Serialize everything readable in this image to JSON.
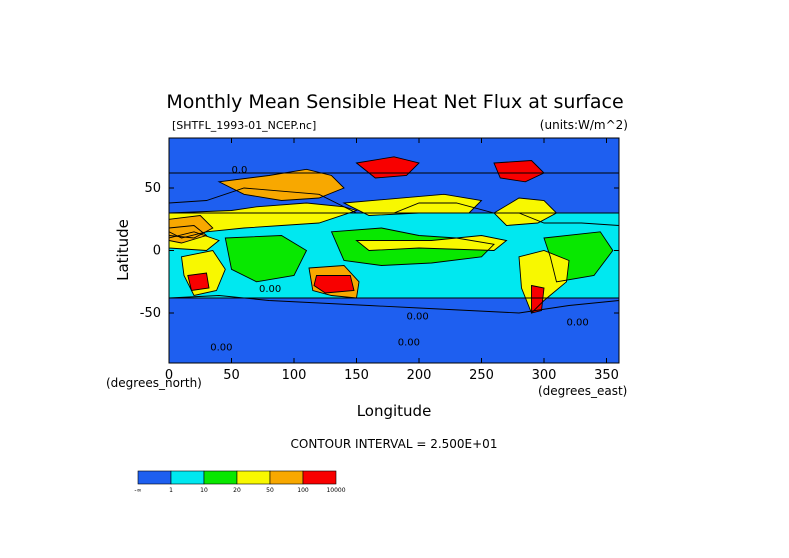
{
  "chart_data": {
    "type": "heatmap",
    "title": "Monthly Mean Sensible Heat Net Flux at surface",
    "source_label": "[SHTFL_1993-01_NCEP.nc]",
    "units_label": "(units:W/m^2)",
    "xlabel": "Longitude",
    "ylabel": "Latitude",
    "x_unit_label": "(degrees_north)",
    "y_unit_label": "(degrees_east)",
    "xlim": [
      0,
      360
    ],
    "ylim": [
      -90,
      90
    ],
    "x_ticks": [
      0,
      50,
      100,
      150,
      200,
      250,
      300,
      350
    ],
    "y_ticks": [
      -50,
      0,
      50
    ],
    "contour_interval_text": "CONTOUR INTERVAL = 2.500E+01",
    "contour_labels": [
      {
        "text": "0.00",
        "lon": 72,
        "lat": -33
      },
      {
        "text": "0.00",
        "lon": 190,
        "lat": -55
      },
      {
        "text": "0.00",
        "lon": 183,
        "lat": -76
      },
      {
        "text": "0.00",
        "lon": 318,
        "lat": -60
      },
      {
        "text": "0.00",
        "lon": 33,
        "lat": -80
      },
      {
        "text": "0.0",
        "lon": 50,
        "lat": 62
      }
    ],
    "colorbar": {
      "labels": [
        "-∞",
        "1",
        "10",
        "20",
        "50",
        "100",
        "10000"
      ],
      "colors": [
        "#1e5ff0",
        "#00e8f0",
        "#08e800",
        "#f8f800",
        "#f8a800",
        "#f80000"
      ]
    },
    "regions": [
      {
        "name": "north-polar-band",
        "level": 0,
        "points": [
          [
            0,
            90
          ],
          [
            360,
            90
          ],
          [
            360,
            62
          ],
          [
            0,
            62
          ]
        ]
      },
      {
        "name": "northern-ocean-neg",
        "level": 0,
        "points": [
          [
            0,
            62
          ],
          [
            360,
            62
          ],
          [
            360,
            30
          ],
          [
            260,
            30
          ],
          [
            230,
            38
          ],
          [
            200,
            38
          ],
          [
            180,
            30
          ],
          [
            150,
            30
          ],
          [
            120,
            45
          ],
          [
            60,
            50
          ],
          [
            30,
            40
          ],
          [
            0,
            38
          ]
        ]
      },
      {
        "name": "north-atlantic-neg",
        "level": 0,
        "points": [
          [
            280,
            30
          ],
          [
            360,
            30
          ],
          [
            360,
            20
          ],
          [
            330,
            22
          ],
          [
            300,
            22
          ]
        ]
      },
      {
        "name": "southern-ocean-neg",
        "level": 0,
        "points": [
          [
            0,
            -38
          ],
          [
            40,
            -36
          ],
          [
            80,
            -40
          ],
          [
            120,
            -42
          ],
          [
            160,
            -44
          ],
          [
            200,
            -46
          ],
          [
            240,
            -48
          ],
          [
            280,
            -50
          ],
          [
            320,
            -44
          ],
          [
            360,
            -40
          ],
          [
            360,
            -90
          ],
          [
            0,
            -90
          ]
        ]
      },
      {
        "name": "tropic-ocean-cyan",
        "level": 1,
        "points": [
          [
            0,
            30
          ],
          [
            360,
            30
          ],
          [
            360,
            -38
          ],
          [
            0,
            -38
          ]
        ]
      },
      {
        "name": "west-pacific-green",
        "level": 2,
        "points": [
          [
            130,
            15
          ],
          [
            170,
            18
          ],
          [
            200,
            12
          ],
          [
            230,
            10
          ],
          [
            260,
            5
          ],
          [
            250,
            -5
          ],
          [
            210,
            -10
          ],
          [
            170,
            -12
          ],
          [
            140,
            -8
          ]
        ]
      },
      {
        "name": "indian-green",
        "level": 2,
        "points": [
          [
            45,
            10
          ],
          [
            90,
            12
          ],
          [
            110,
            0
          ],
          [
            100,
            -20
          ],
          [
            70,
            -25
          ],
          [
            50,
            -15
          ]
        ]
      },
      {
        "name": "atlantic-green",
        "level": 2,
        "points": [
          [
            300,
            10
          ],
          [
            345,
            15
          ],
          [
            355,
            0
          ],
          [
            340,
            -20
          ],
          [
            310,
            -25
          ],
          [
            305,
            -5
          ]
        ]
      },
      {
        "name": "north-africa-yellow",
        "level": 3,
        "points": [
          [
            0,
            30
          ],
          [
            50,
            32
          ],
          [
            70,
            35
          ],
          [
            110,
            38
          ],
          [
            140,
            35
          ],
          [
            150,
            32
          ],
          [
            120,
            22
          ],
          [
            90,
            20
          ],
          [
            60,
            18
          ],
          [
            30,
            15
          ],
          [
            10,
            10
          ],
          [
            0,
            15
          ]
        ]
      },
      {
        "name": "asia-orange",
        "level": 4,
        "points": [
          [
            40,
            55
          ],
          [
            80,
            60
          ],
          [
            110,
            65
          ],
          [
            130,
            60
          ],
          [
            140,
            50
          ],
          [
            120,
            42
          ],
          [
            90,
            40
          ],
          [
            60,
            45
          ]
        ]
      },
      {
        "name": "sahara-orange",
        "level": 4,
        "points": [
          [
            0,
            25
          ],
          [
            25,
            28
          ],
          [
            35,
            18
          ],
          [
            20,
            10
          ],
          [
            0,
            12
          ]
        ]
      },
      {
        "name": "north-pacific-yellow",
        "level": 3,
        "points": [
          [
            140,
            38
          ],
          [
            220,
            45
          ],
          [
            250,
            40
          ],
          [
            240,
            30
          ],
          [
            200,
            30
          ],
          [
            160,
            28
          ]
        ]
      },
      {
        "name": "us-yellow",
        "level": 3,
        "points": [
          [
            260,
            30
          ],
          [
            280,
            42
          ],
          [
            300,
            40
          ],
          [
            310,
            30
          ],
          [
            295,
            22
          ],
          [
            270,
            20
          ]
        ]
      },
      {
        "name": "siberia-red",
        "level": 5,
        "points": [
          [
            150,
            70
          ],
          [
            180,
            75
          ],
          [
            200,
            70
          ],
          [
            190,
            60
          ],
          [
            165,
            58
          ]
        ]
      },
      {
        "name": "canada-red",
        "level": 5,
        "points": [
          [
            260,
            70
          ],
          [
            290,
            72
          ],
          [
            300,
            62
          ],
          [
            285,
            55
          ],
          [
            265,
            58
          ]
        ]
      },
      {
        "name": "africa-south-yellow",
        "level": 3,
        "points": [
          [
            10,
            -5
          ],
          [
            35,
            0
          ],
          [
            45,
            -15
          ],
          [
            38,
            -32
          ],
          [
            20,
            -36
          ],
          [
            12,
            -20
          ]
        ]
      },
      {
        "name": "africa-south-red",
        "level": 5,
        "points": [
          [
            15,
            -20
          ],
          [
            30,
            -18
          ],
          [
            32,
            -30
          ],
          [
            18,
            -32
          ]
        ]
      },
      {
        "name": "australia-orange",
        "level": 4,
        "points": [
          [
            112,
            -14
          ],
          [
            140,
            -12
          ],
          [
            152,
            -25
          ],
          [
            150,
            -38
          ],
          [
            130,
            -36
          ],
          [
            115,
            -32
          ]
        ]
      },
      {
        "name": "australia-red",
        "level": 5,
        "points": [
          [
            118,
            -20
          ],
          [
            145,
            -20
          ],
          [
            148,
            -32
          ],
          [
            125,
            -34
          ],
          [
            116,
            -28
          ]
        ]
      },
      {
        "name": "south-america-yellow",
        "level": 3,
        "points": [
          [
            280,
            -5
          ],
          [
            300,
            0
          ],
          [
            320,
            -8
          ],
          [
            318,
            -25
          ],
          [
            300,
            -40
          ],
          [
            290,
            -50
          ],
          [
            282,
            -30
          ]
        ]
      },
      {
        "name": "south-america-red",
        "level": 5,
        "points": [
          [
            290,
            -28
          ],
          [
            300,
            -30
          ],
          [
            298,
            -48
          ],
          [
            290,
            -50
          ]
        ]
      },
      {
        "name": "equator-belt-yellow",
        "level": 3,
        "points": [
          [
            0,
            10
          ],
          [
            20,
            15
          ],
          [
            40,
            8
          ],
          [
            30,
            0
          ],
          [
            0,
            2
          ]
        ]
      },
      {
        "name": "tropic-yellow-band",
        "level": 3,
        "points": [
          [
            150,
            8
          ],
          [
            210,
            8
          ],
          [
            250,
            12
          ],
          [
            270,
            8
          ],
          [
            260,
            0
          ],
          [
            200,
            2
          ],
          [
            160,
            0
          ]
        ]
      },
      {
        "name": "tropic-orange-left",
        "level": 4,
        "points": [
          [
            0,
            18
          ],
          [
            20,
            20
          ],
          [
            30,
            12
          ],
          [
            10,
            6
          ],
          [
            0,
            8
          ]
        ]
      }
    ]
  }
}
